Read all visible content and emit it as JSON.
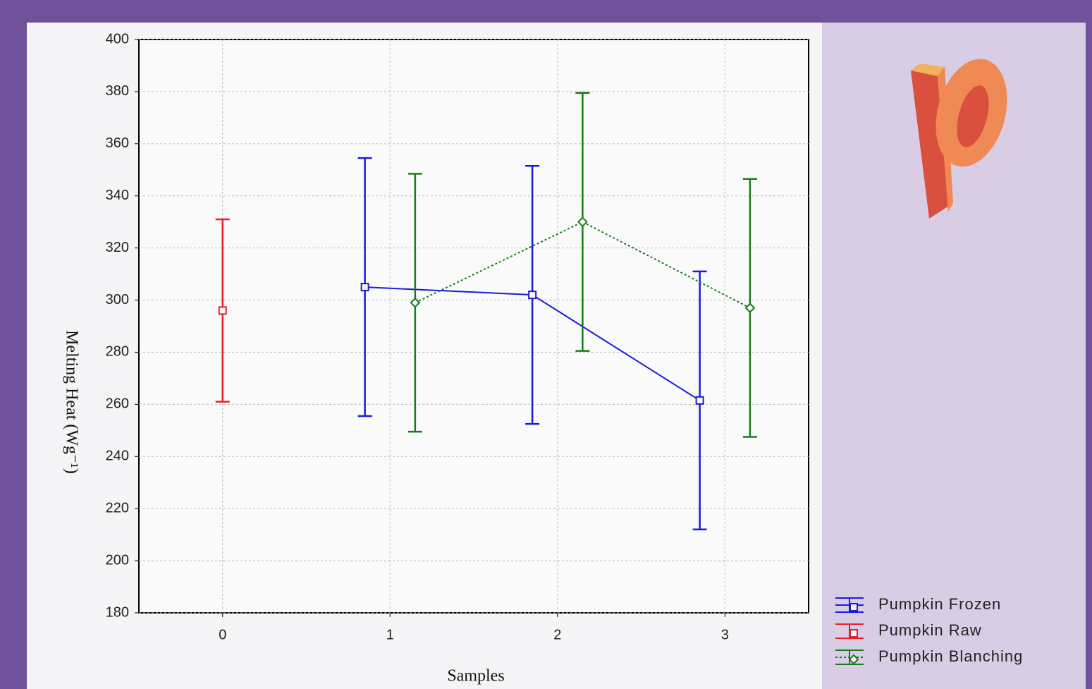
{
  "chart_data": {
    "type": "errorbar",
    "x_label": "Samples",
    "y_label": "Melting Heat (Wg⁻¹)",
    "xlim": [
      -0.5,
      3.5
    ],
    "xticks": [
      0,
      1,
      2,
      3
    ],
    "ylim": [
      180,
      400
    ],
    "yticks": [
      180,
      200,
      220,
      240,
      260,
      280,
      300,
      320,
      340,
      360,
      380,
      400
    ],
    "grid": true,
    "legend": "lower-right",
    "series": [
      {
        "name": "Pumpkin Frozen",
        "color": "#1a1adc",
        "marker": "square",
        "linestyle": "solid",
        "x": [
          0.85,
          1.85,
          2.85
        ],
        "values": [
          305,
          302,
          261.5
        ],
        "errors": [
          49.5,
          49.5,
          49.5
        ]
      },
      {
        "name": "Pumpkin Raw",
        "color": "#e8202a",
        "marker": "square",
        "linestyle": "none",
        "x": [
          0
        ],
        "values": [
          296
        ],
        "errors": [
          35
        ]
      },
      {
        "name": "Pumpkin Blanching",
        "color": "#1a7a1a",
        "marker": "diamond",
        "linestyle": "dotted",
        "x": [
          1.15,
          2.15,
          3.15
        ],
        "values": [
          299,
          330,
          297
        ],
        "errors": [
          49.5,
          49.5,
          49.5
        ]
      }
    ]
  }
}
